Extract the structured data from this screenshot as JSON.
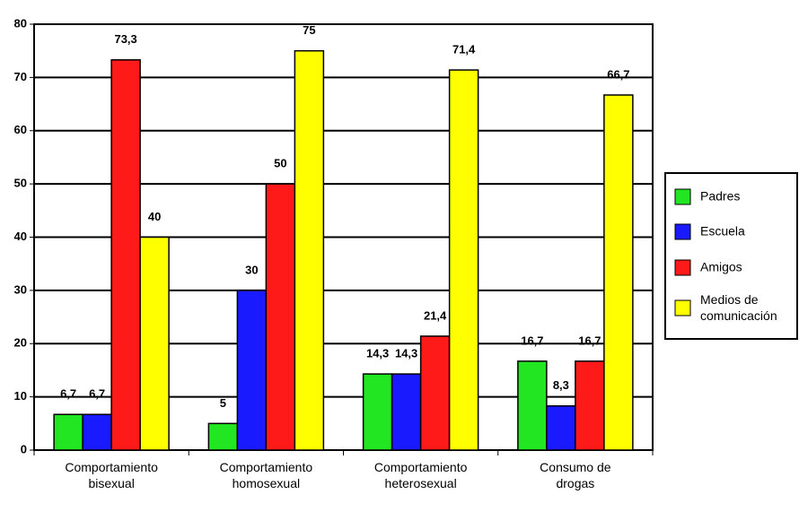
{
  "chart_data": {
    "type": "bar",
    "categories": [
      "Comportamiento bisexual",
      "Comportamiento homosexual",
      "Comportamiento heterosexual",
      "Consumo de drogas"
    ],
    "series": [
      {
        "name": "Padres",
        "color": "#22e622",
        "values": [
          6.7,
          5,
          14.3,
          16.7
        ],
        "value_labels": [
          "6,7",
          "5",
          "14,3",
          "16,7"
        ]
      },
      {
        "name": "Escuela",
        "color": "#1a1aff",
        "values": [
          6.7,
          30,
          14.3,
          8.3
        ],
        "value_labels": [
          "6,7",
          "30",
          "14,3",
          "8,3"
        ]
      },
      {
        "name": "Amigos",
        "color": "#ff1a1a",
        "values": [
          73.3,
          50,
          21.4,
          16.7
        ],
        "value_labels": [
          "73,3",
          "50",
          "21,4",
          "16,7"
        ]
      },
      {
        "name": "Medios de comunicación",
        "color": "#ffff00",
        "values": [
          40,
          75,
          71.4,
          66.7
        ],
        "value_labels": [
          "40",
          "75",
          "71,4",
          "66,7"
        ]
      }
    ],
    "ylim": [
      0,
      80
    ],
    "yticks": [
      0,
      10,
      20,
      30,
      40,
      50,
      60,
      70,
      80
    ],
    "grid": true,
    "legend": "right"
  }
}
